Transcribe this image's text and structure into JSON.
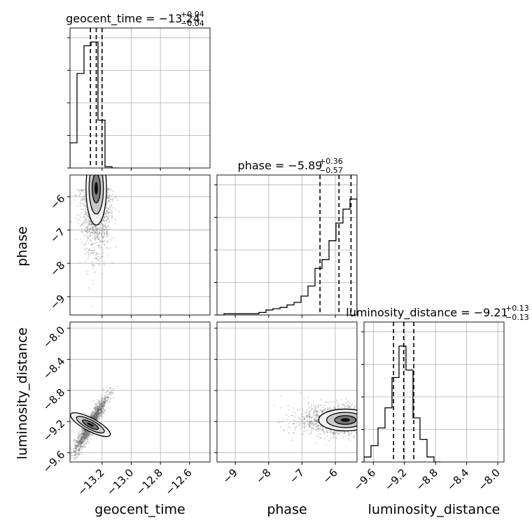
{
  "chart_data": {
    "type": "corner",
    "parameters": [
      "geocent_time",
      "phase",
      "luminosity_distance"
    ],
    "axis_labels": [
      "geocent_time",
      "phase",
      "luminosity_distance"
    ],
    "ranges": {
      "geocent_time": [
        -13.42,
        -12.46
      ],
      "phase": [
        -9.55,
        -5.35
      ],
      "luminosity_distance": [
        -9.72,
        -7.92
      ]
    },
    "ticks": {
      "geocent_time": [
        -13.2,
        -13.0,
        -12.8,
        -12.6
      ],
      "phase": [
        -9,
        -8,
        -7,
        -6
      ],
      "luminosity_distance": [
        -9.6,
        -9.2,
        -8.8,
        -8.4,
        -8.0
      ]
    },
    "tick_labels": {
      "geocent_time": [
        "−13.2",
        "−13.0",
        "−12.8",
        "−12.6"
      ],
      "phase": [
        "−9",
        "−8",
        "−7",
        "−6"
      ],
      "luminosity_distance": [
        "−9.6",
        "−9.2",
        "−8.8",
        "−8.4",
        "−8.0"
      ]
    },
    "titles": [
      {
        "param": "geocent_time",
        "label": "geocent_time = ",
        "median": "−13.24",
        "plus": "+0.04",
        "minus": "−0.04"
      },
      {
        "param": "phase",
        "label": "phase = ",
        "median": "−5.89",
        "plus": "+0.36",
        "minus": "−0.57"
      },
      {
        "param": "luminosity_distance",
        "label": "luminosity_distance = ",
        "median": "−9.21",
        "plus": "+0.13",
        "minus": "−0.13"
      }
    ],
    "quantiles": {
      "geocent_time": [
        -13.28,
        -13.24,
        -13.2
      ],
      "phase": [
        -6.46,
        -5.89,
        -5.53
      ],
      "luminosity_distance": [
        -9.34,
        -9.21,
        -9.08
      ]
    },
    "histograms": {
      "geocent_time": {
        "edges": [
          -13.42,
          -13.372,
          -13.324,
          -13.276,
          -13.228,
          -13.18,
          -13.132,
          -13.084
        ],
        "counts": [
          0.2,
          0.75,
          0.97,
          1.0,
          0.38,
          0.01,
          0.0
        ]
      },
      "phase": {
        "edges": [
          -9.55,
          -9.34,
          -9.13,
          -8.92,
          -8.71,
          -8.5,
          -8.29,
          -8.08,
          -7.87,
          -7.66,
          -7.45,
          -7.24,
          -7.03,
          -6.82,
          -6.61,
          -6.4,
          -6.19,
          -5.98,
          -5.77,
          -5.56,
          -5.35
        ],
        "counts": [
          0.0,
          0.01,
          0.01,
          0.01,
          0.01,
          0.01,
          0.02,
          0.04,
          0.05,
          0.06,
          0.08,
          0.1,
          0.15,
          0.23,
          0.37,
          0.44,
          0.59,
          0.73,
          0.84,
          0.92
        ]
      },
      "luminosity_distance": {
        "edges": [
          -9.72,
          -9.63,
          -9.54,
          -9.45,
          -9.36,
          -9.27,
          -9.18,
          -9.09,
          -9.0,
          -8.91,
          -8.82,
          -8.73
        ],
        "counts": [
          0.04,
          0.13,
          0.27,
          0.43,
          0.67,
          0.92,
          0.73,
          0.35,
          0.18,
          0.04,
          0.0
        ]
      }
    },
    "joint": [
      {
        "x": "geocent_time",
        "y": "phase",
        "center": [
          -13.24,
          -5.75
        ],
        "spread": [
          0.035,
          0.55
        ],
        "corr": 0.1
      },
      {
        "x": "geocent_time",
        "y": "luminosity_distance",
        "center": [
          -13.28,
          -9.24
        ],
        "spread": [
          0.04,
          0.13
        ],
        "corr": 0.93
      },
      {
        "x": "phase",
        "y": "luminosity_distance",
        "center": [
          -5.7,
          -9.18
        ],
        "spread": [
          0.4,
          0.07
        ],
        "corr": 0.0
      }
    ],
    "grid": true,
    "colors": {
      "line": "#000000",
      "grid": "#b0b0b0",
      "scatter": "#555555"
    }
  }
}
